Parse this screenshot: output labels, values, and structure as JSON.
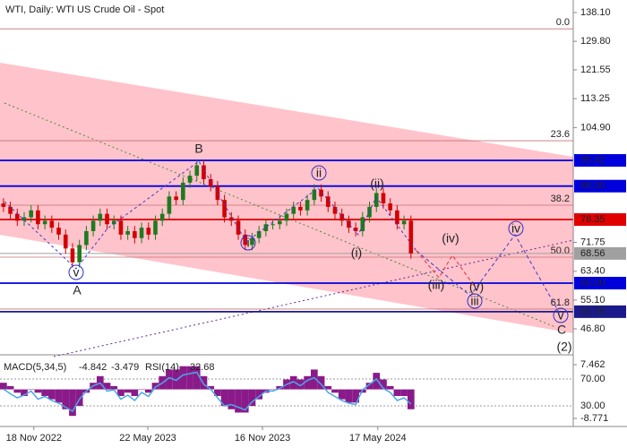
{
  "chart_data": {
    "type": "candlestick",
    "title": "WTI, Daily:  WTI US Crude Oil - Spot",
    "up_color": "#1f7a1f",
    "down_color": "#d40000",
    "open": [
      83,
      82,
      80,
      78,
      79,
      81,
      77,
      78,
      76,
      74,
      70,
      66,
      71,
      75,
      78,
      80,
      77,
      78,
      74,
      75,
      73,
      76,
      74,
      78,
      80,
      85,
      84,
      89,
      91,
      94,
      90,
      88,
      84,
      79,
      78,
      74,
      71,
      73,
      75,
      77,
      77,
      78,
      80,
      82,
      81,
      84,
      87,
      85,
      82,
      80,
      78,
      76,
      75,
      79,
      82,
      86,
      83,
      81,
      77,
      78
    ],
    "high": [
      84.5,
      83.5,
      81.5,
      80.5,
      82.5,
      82.5,
      79.5,
      79.5,
      77.5,
      75.5,
      71.5,
      72.5,
      76.5,
      79.5,
      81.5,
      81.5,
      79.5,
      79.5,
      76.5,
      76.5,
      77.5,
      77.5,
      79.5,
      81.5,
      86.5,
      86.5,
      90.5,
      92.5,
      95.5,
      95.5,
      91.5,
      89.5,
      85.5,
      80.5,
      79.5,
      75.5,
      74.5,
      76.5,
      78.5,
      78.5,
      79.5,
      81.5,
      83.5,
      83.5,
      85.5,
      88.5,
      88.5,
      86.5,
      83.5,
      81.5,
      79.5,
      77.5,
      80.5,
      83.5,
      87.5,
      87.5,
      84.5,
      82.5,
      79.5,
      79.5
    ],
    "low": [
      80.5,
      78.5,
      76.5,
      76.5,
      77.5,
      75.5,
      75.5,
      74.5,
      72.5,
      68.5,
      64.5,
      64.5,
      69.5,
      73.5,
      76.5,
      75.5,
      75.5,
      72.5,
      72.5,
      71.5,
      71.5,
      72.5,
      72.5,
      76.5,
      78.5,
      82.5,
      82.5,
      87.5,
      89.5,
      88.5,
      86.5,
      82.5,
      77.5,
      76.5,
      72.5,
      69.5,
      69.5,
      71.5,
      73.5,
      75.5,
      75.5,
      76.5,
      78.5,
      79.5,
      79.5,
      82.5,
      83.5,
      80.5,
      78.5,
      76.5,
      74.5,
      73.5,
      73.5,
      77.5,
      80.5,
      81.5,
      79.5,
      75.5,
      75.5,
      67.06
    ],
    "close": [
      82,
      80,
      78,
      79,
      81,
      77,
      78,
      76,
      74,
      70,
      66,
      71,
      75,
      78,
      80,
      77,
      78,
      74,
      75,
      73,
      76,
      74,
      78,
      80,
      85,
      84,
      89,
      91,
      94,
      90,
      88,
      84,
      79,
      78,
      74,
      71,
      73,
      75,
      77,
      77,
      78,
      80,
      82,
      81,
      84,
      87,
      85,
      82,
      80,
      78,
      76,
      75,
      79,
      82,
      86,
      83,
      81,
      77,
      78,
      68.56
    ],
    "xlim": [
      -0.5,
      82.5
    ],
    "xticks": [
      {
        "value": 4.4,
        "label": "18 Nov 2022"
      },
      {
        "value": 20.9,
        "label": "22 May 2023"
      },
      {
        "value": 37.5,
        "label": "16 Nov 2023"
      },
      {
        "value": 54.2,
        "label": "17 May 2024"
      }
    ],
    "ylim": [
      46.8,
      138.1
    ],
    "yticks": [
      {
        "value": 138.1,
        "label": "138.10"
      },
      {
        "value": 129.8,
        "label": "129.80"
      },
      121.55,
      113.25,
      {
        "value": 104.9,
        "label": "104.90"
      },
      71.75,
      {
        "value": 63.4,
        "label": "63.40"
      },
      {
        "value": 55.1,
        "label": "55.10"
      },
      {
        "value": 46.8,
        "label": "46.80"
      }
    ],
    "grid": false,
    "levels": [
      {
        "value": 95.42,
        "color": "#0000dd"
      },
      {
        "value": {
          "value": 88,
          "label": "88.00"
        },
        "color": "#0000dd"
      },
      {
        "value": 78.35,
        "color": "#e00000"
      },
      {
        "value": 68.56,
        "color": "#a0a0a0"
      },
      {
        "value": {
          "value": 60,
          "label": "60.00"
        },
        "color": "#0000dd"
      },
      {
        "value": 51.75,
        "color": "#1a1a8c"
      }
    ],
    "fib": [
      {
        "label": "0.0",
        "price": 133.4
      },
      {
        "label": "23.6",
        "price": 101.1
      },
      {
        "label": "38.2",
        "price": 82.5
      },
      {
        "label": "50.0",
        "price": 67.5
      },
      {
        "label": "61.8",
        "price": 52.5
      }
    ],
    "annotations": [
      "v",
      "A",
      "B",
      "i",
      "ii",
      "(i)",
      "(ii)",
      "(iii)",
      "(iv)",
      "(v)",
      "iii",
      "iv",
      "v",
      "C",
      "(2)"
    ],
    "indicator": {
      "name": "MACD(5,34,5)",
      "macd": -4.842,
      "signal": -3.479,
      "rsi_name": "RSI(14)",
      "rsi": 32.68,
      "hist_color": "#8a1a8a",
      "rsi_color": "#4aa8e8",
      "macd_lim": [
        -8.771,
        7.462
      ],
      "macd_ticks": [
        7.462,
        -8.771
      ],
      "rsi_lim": [
        0,
        100
      ],
      "rsi_ticks": [
        {
          "value": 70,
          "label": "70.00"
        },
        {
          "value": 30,
          "label": "30.00"
        }
      ],
      "hist": [
        2,
        1,
        -1,
        -2,
        0,
        -1,
        -2,
        -3,
        -4,
        -6,
        -8,
        -5,
        -1,
        2,
        4,
        2,
        1,
        -2,
        -1,
        -2,
        0,
        -1,
        2,
        4,
        6,
        6,
        7,
        7,
        7,
        4,
        1,
        -2,
        -5,
        -6,
        -7,
        -7,
        -5,
        -3,
        -1,
        0,
        1,
        3,
        4,
        3,
        4,
        6,
        4,
        1,
        -1,
        -3,
        -4,
        -4,
        -1,
        2,
        5,
        3,
        1,
        -2,
        -2,
        -6
      ],
      "rsi_values": [
        55,
        48,
        42,
        46,
        52,
        40,
        44,
        38,
        34,
        28,
        22,
        40,
        52,
        60,
        64,
        52,
        54,
        40,
        46,
        38,
        50,
        44,
        58,
        64,
        72,
        68,
        76,
        78,
        80,
        62,
        55,
        42,
        30,
        32,
        28,
        24,
        36,
        44,
        52,
        52,
        56,
        62,
        66,
        60,
        68,
        72,
        62,
        50,
        44,
        38,
        34,
        32,
        54,
        62,
        70,
        56,
        50,
        38,
        42,
        32.68
      ]
    }
  }
}
